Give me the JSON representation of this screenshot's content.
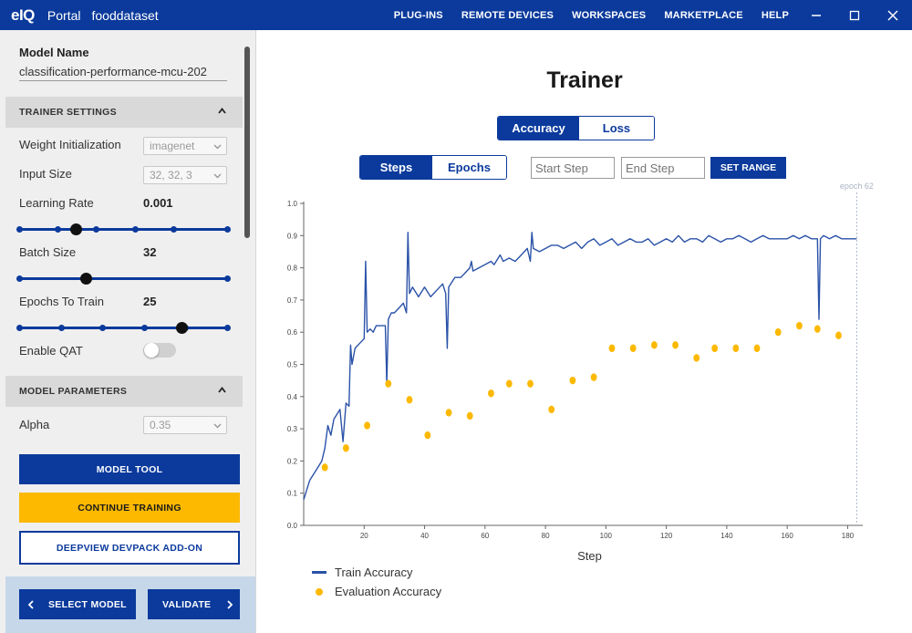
{
  "titlebar": {
    "logo": "eIQ",
    "app_name": "Portal",
    "dataset": "fooddataset",
    "nav": [
      "PLUG-INS",
      "REMOTE DEVICES",
      "WORKSPACES",
      "MARKETPLACE",
      "HELP"
    ]
  },
  "sidebar": {
    "model_name_label": "Model Name",
    "model_name_value": "classification-performance-mcu-202",
    "trainer_settings_header": "TRAINER SETTINGS",
    "weight_init_label": "Weight Initialization",
    "weight_init_value": "imagenet",
    "input_size_label": "Input Size",
    "input_size_value": "32, 32, 3",
    "learning_rate_label": "Learning Rate",
    "learning_rate_value": "0.001",
    "learning_rate_level": 0.27,
    "batch_size_label": "Batch Size",
    "batch_size_value": "32",
    "batch_size_level": 0.32,
    "epochs_label": "Epochs To Train",
    "epochs_value": "25",
    "epochs_level": 0.78,
    "enable_qat_label": "Enable QAT",
    "enable_qat_on": false,
    "model_params_header": "MODEL PARAMETERS",
    "alpha_label": "Alpha",
    "alpha_value": "0.35",
    "btn_model_tool": "MODEL TOOL",
    "btn_continue": "CONTINUE TRAINING",
    "btn_deepview": "DEEPVIEW DEVPACK ADD-ON",
    "btn_select_model": "SELECT MODEL",
    "btn_validate": "VALIDATE"
  },
  "main": {
    "title": "Trainer",
    "metric_tabs": [
      "Accuracy",
      "Loss"
    ],
    "metric_active": "Accuracy",
    "axis_tabs": [
      "Steps",
      "Epochs"
    ],
    "axis_active": "Steps",
    "start_step_placeholder": "Start Step",
    "end_step_placeholder": "End Step",
    "set_range": "SET RANGE"
  },
  "colors": {
    "brand_blue": "#0b3a9c",
    "accent_yellow": "#fcb900",
    "train_line": "#2a52a8"
  },
  "chart_data": {
    "type": "line",
    "xlabel": "Step",
    "ylabel": "",
    "xlim": [
      0,
      185
    ],
    "ylim": [
      0,
      1.0
    ],
    "xticks": [
      20,
      40,
      60,
      80,
      100,
      120,
      140,
      160,
      180
    ],
    "yticks": [
      0.0,
      0.1,
      0.2,
      0.3,
      0.4,
      0.5,
      0.6,
      0.7,
      0.8,
      0.9,
      1.0
    ],
    "yticklabels": [
      "0.0",
      "0.1",
      "0.2",
      "0.3",
      "0.4",
      "0.5",
      "0.6",
      "0.7",
      "0.8",
      "0.9",
      "1.0"
    ],
    "annotation": "epoch 62",
    "annotation_x": 183,
    "series": [
      {
        "name": "Train Accuracy",
        "kind": "line",
        "x": [
          0,
          2,
          4,
          6,
          7,
          8,
          9,
          10,
          12,
          13,
          14,
          15,
          15.5,
          16,
          17,
          18,
          20,
          20.5,
          21,
          22,
          23,
          24,
          26,
          27,
          27.5,
          28,
          29,
          30,
          32,
          33,
          34,
          34.5,
          35,
          36,
          38,
          40,
          42,
          44,
          46,
          47,
          47.5,
          48,
          50,
          52,
          54,
          55,
          55.5,
          56,
          58,
          60,
          62,
          63,
          65,
          66,
          68,
          70,
          72,
          74,
          75,
          75.5,
          76,
          78,
          80,
          82,
          84,
          86,
          88,
          90,
          92,
          94,
          96,
          98,
          100,
          102,
          104,
          106,
          108,
          110,
          112,
          114,
          116,
          118,
          120,
          122,
          124,
          126,
          128,
          130,
          132,
          134,
          136,
          138,
          140,
          142,
          144,
          146,
          148,
          150,
          152,
          154,
          156,
          158,
          160,
          162,
          164,
          166,
          168,
          170,
          170.5,
          171,
          172,
          174,
          176,
          178,
          180,
          182,
          183
        ],
        "y": [
          0.08,
          0.14,
          0.17,
          0.2,
          0.24,
          0.31,
          0.28,
          0.33,
          0.36,
          0.26,
          0.38,
          0.37,
          0.56,
          0.5,
          0.55,
          0.56,
          0.58,
          0.82,
          0.6,
          0.61,
          0.6,
          0.62,
          0.62,
          0.62,
          0.44,
          0.64,
          0.66,
          0.66,
          0.68,
          0.69,
          0.66,
          0.91,
          0.72,
          0.74,
          0.71,
          0.74,
          0.71,
          0.73,
          0.75,
          0.72,
          0.55,
          0.74,
          0.77,
          0.77,
          0.79,
          0.8,
          0.82,
          0.79,
          0.8,
          0.81,
          0.82,
          0.81,
          0.84,
          0.82,
          0.83,
          0.82,
          0.84,
          0.86,
          0.82,
          0.91,
          0.86,
          0.85,
          0.86,
          0.87,
          0.87,
          0.86,
          0.87,
          0.88,
          0.86,
          0.88,
          0.89,
          0.87,
          0.88,
          0.89,
          0.87,
          0.88,
          0.89,
          0.88,
          0.88,
          0.89,
          0.87,
          0.88,
          0.89,
          0.88,
          0.9,
          0.88,
          0.89,
          0.89,
          0.88,
          0.9,
          0.89,
          0.88,
          0.89,
          0.89,
          0.9,
          0.89,
          0.88,
          0.89,
          0.9,
          0.89,
          0.89,
          0.89,
          0.89,
          0.9,
          0.89,
          0.9,
          0.89,
          0.89,
          0.64,
          0.89,
          0.9,
          0.89,
          0.9,
          0.89,
          0.89,
          0.89,
          0.89
        ]
      },
      {
        "name": "Evaluation Accuracy",
        "kind": "scatter",
        "x": [
          7,
          14,
          21,
          28,
          35,
          41,
          48,
          55,
          62,
          68,
          75,
          82,
          89,
          96,
          102,
          109,
          116,
          123,
          130,
          136,
          143,
          150,
          157,
          164,
          170,
          177
        ],
        "y": [
          0.18,
          0.24,
          0.31,
          0.44,
          0.39,
          0.28,
          0.35,
          0.34,
          0.41,
          0.44,
          0.44,
          0.36,
          0.45,
          0.46,
          0.55,
          0.55,
          0.56,
          0.56,
          0.52,
          0.55,
          0.55,
          0.55,
          0.6,
          0.62,
          0.61,
          0.59
        ]
      }
    ]
  }
}
